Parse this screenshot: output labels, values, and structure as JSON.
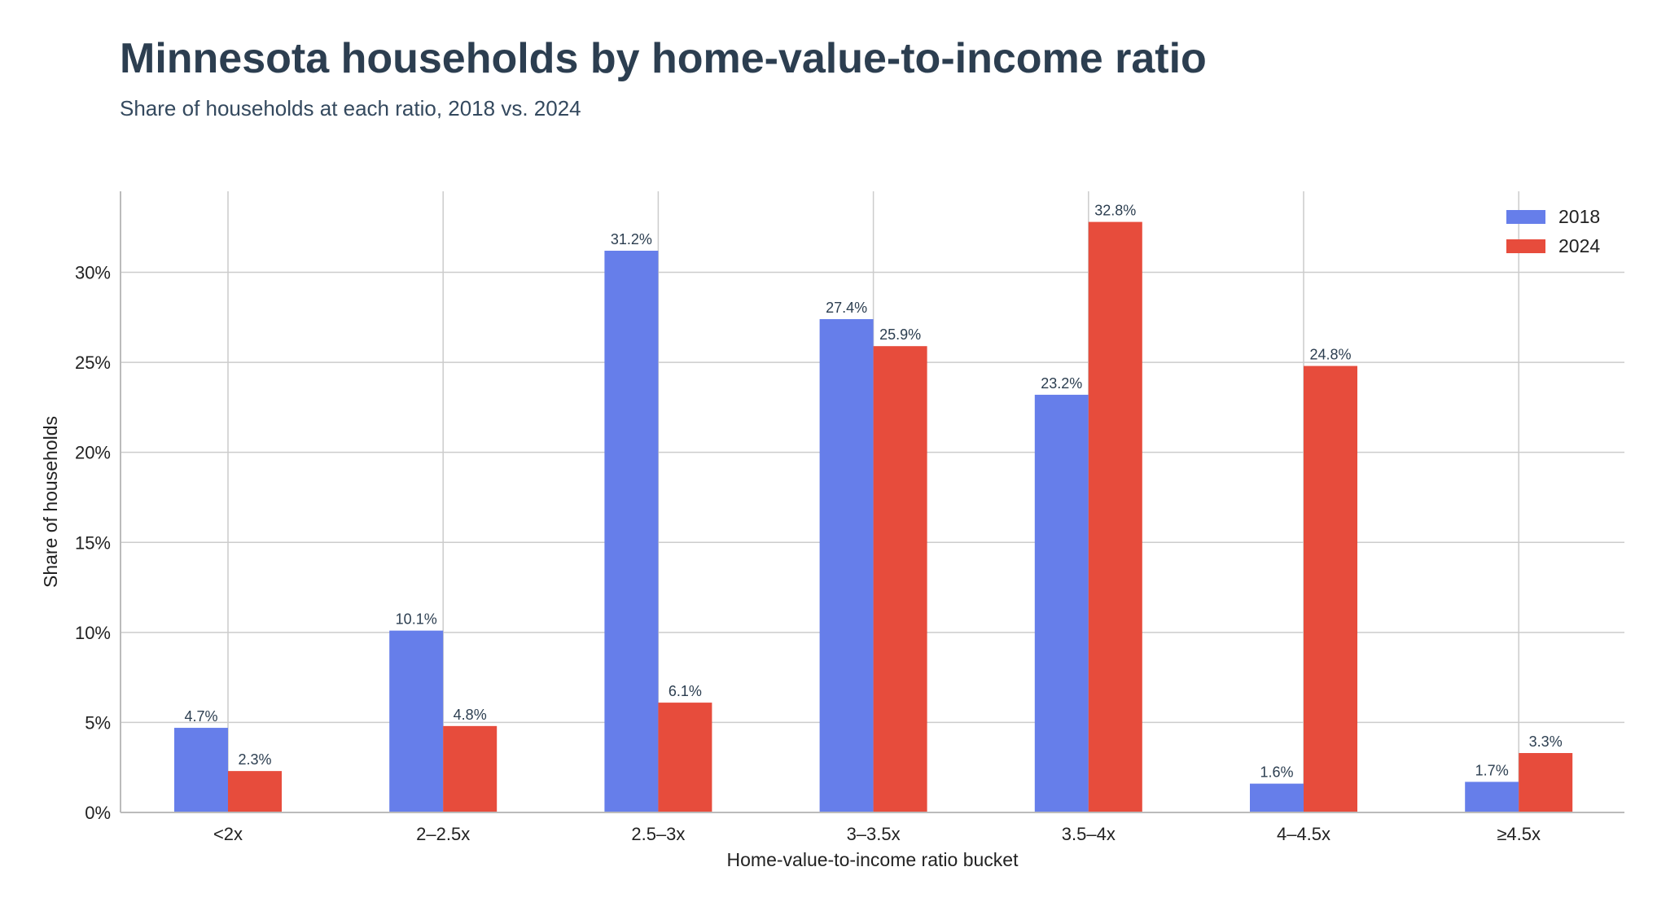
{
  "chart_data": {
    "type": "bar",
    "title": "Minnesota households by home-value-to-income ratio",
    "subtitle": "Share of households at each ratio, 2018 vs. 2024",
    "xlabel": "Home-value-to-income ratio bucket",
    "ylabel": "Share of households",
    "ylim": [
      0,
      34.5
    ],
    "yticks": [
      0,
      5,
      10,
      15,
      20,
      25,
      30
    ],
    "ytick_labels": [
      "0%",
      "5%",
      "10%",
      "15%",
      "20%",
      "25%",
      "30%"
    ],
    "categories": [
      "<2x",
      "2–2.5x",
      "2.5–3x",
      "3–3.5x",
      "3.5–4x",
      "4–4.5x",
      "≥4.5x"
    ],
    "series": [
      {
        "name": "2018",
        "color": "#667eea",
        "values": [
          4.7,
          10.1,
          31.2,
          27.4,
          23.2,
          1.6,
          1.7
        ],
        "labels": [
          "4.7%",
          "10.1%",
          "31.2%",
          "27.4%",
          "23.2%",
          "1.6%",
          "1.7%"
        ]
      },
      {
        "name": "2024",
        "color": "#e74c3c",
        "values": [
          2.3,
          4.8,
          6.1,
          25.9,
          32.8,
          24.8,
          3.3
        ],
        "labels": [
          "2.3%",
          "4.8%",
          "6.1%",
          "25.9%",
          "32.8%",
          "24.8%",
          "3.3%"
        ]
      }
    ],
    "grid": true,
    "legend": "top-right"
  }
}
